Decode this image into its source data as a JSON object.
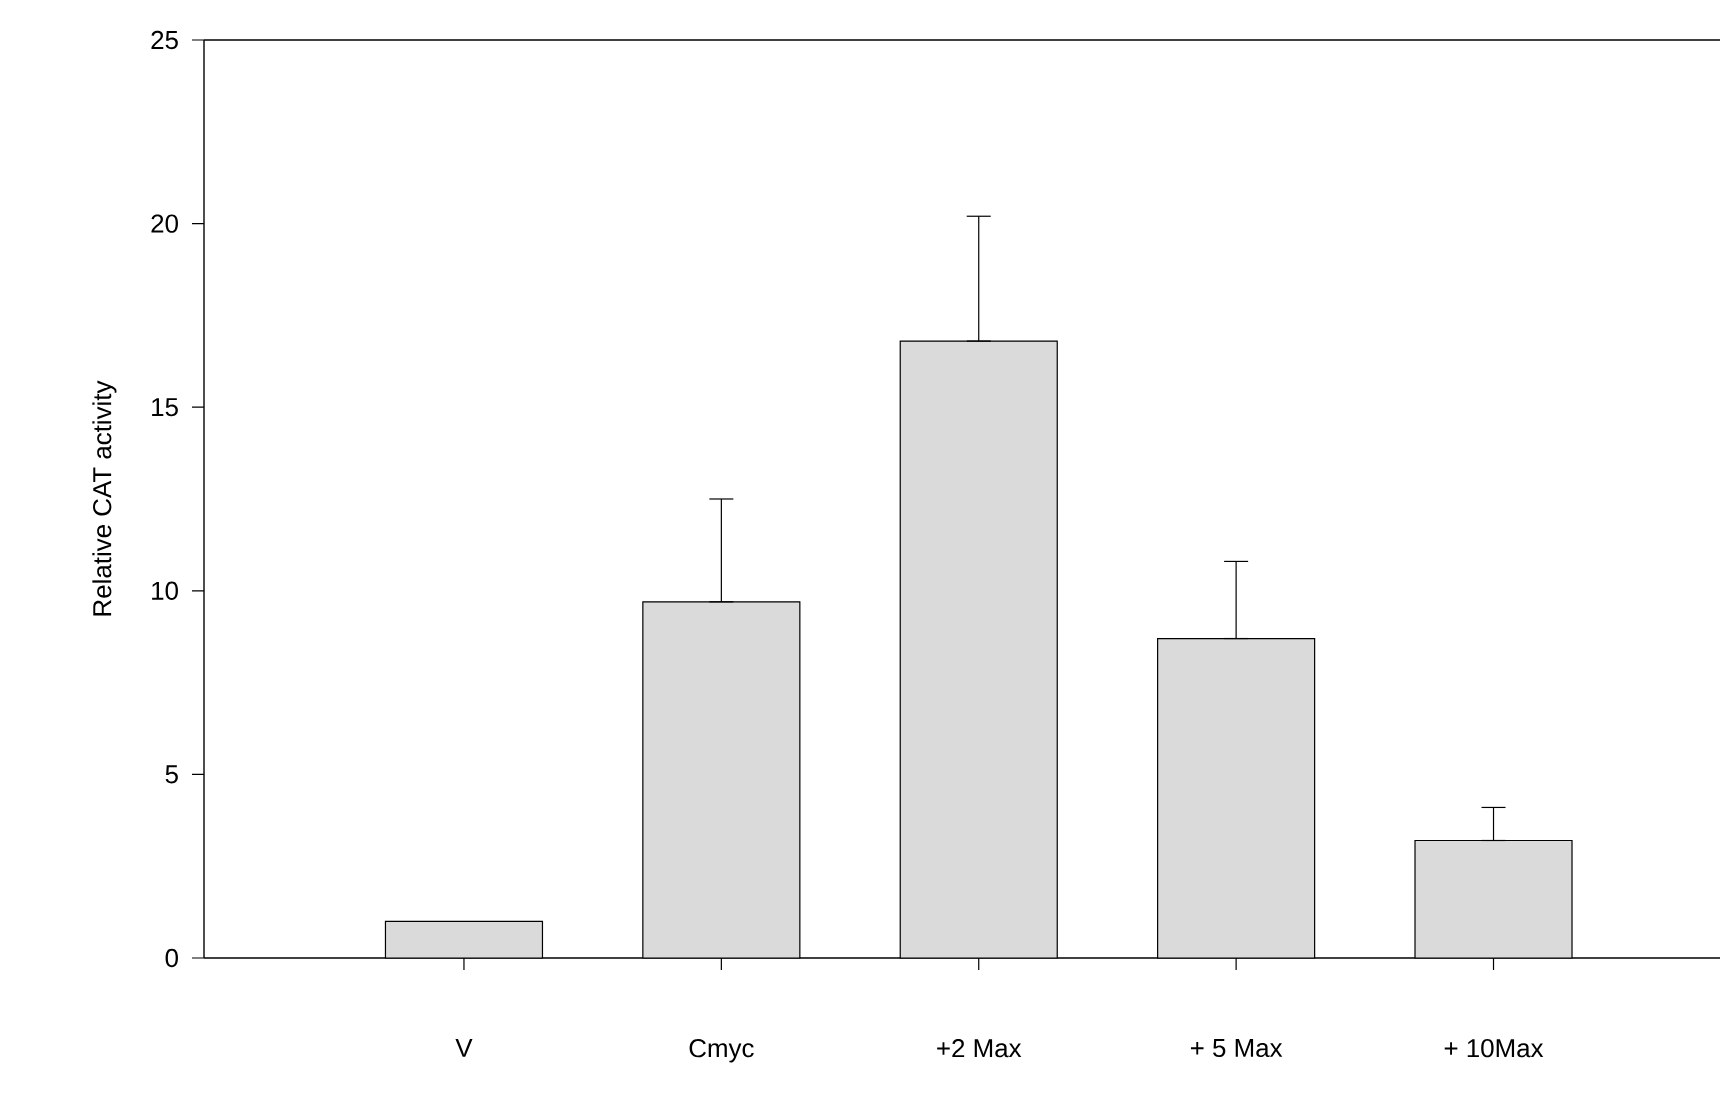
{
  "chart_data": {
    "type": "bar",
    "ylabel": "Relative CAT activity",
    "categories": [
      "V",
      "Cmyc",
      "+2 Max",
      "+ 5 Max",
      "+ 10Max"
    ],
    "values": [
      1.0,
      9.7,
      16.8,
      8.7,
      3.2
    ],
    "errors": [
      null,
      [
        9.7,
        12.5
      ],
      [
        16.8,
        20.2
      ],
      [
        8.7,
        10.8
      ],
      [
        3.2,
        4.1
      ]
    ],
    "color": "#dadada",
    "ylim": [
      0,
      25
    ],
    "yticks": [
      0,
      5,
      10,
      15,
      20,
      25
    ],
    "grid": false
  }
}
